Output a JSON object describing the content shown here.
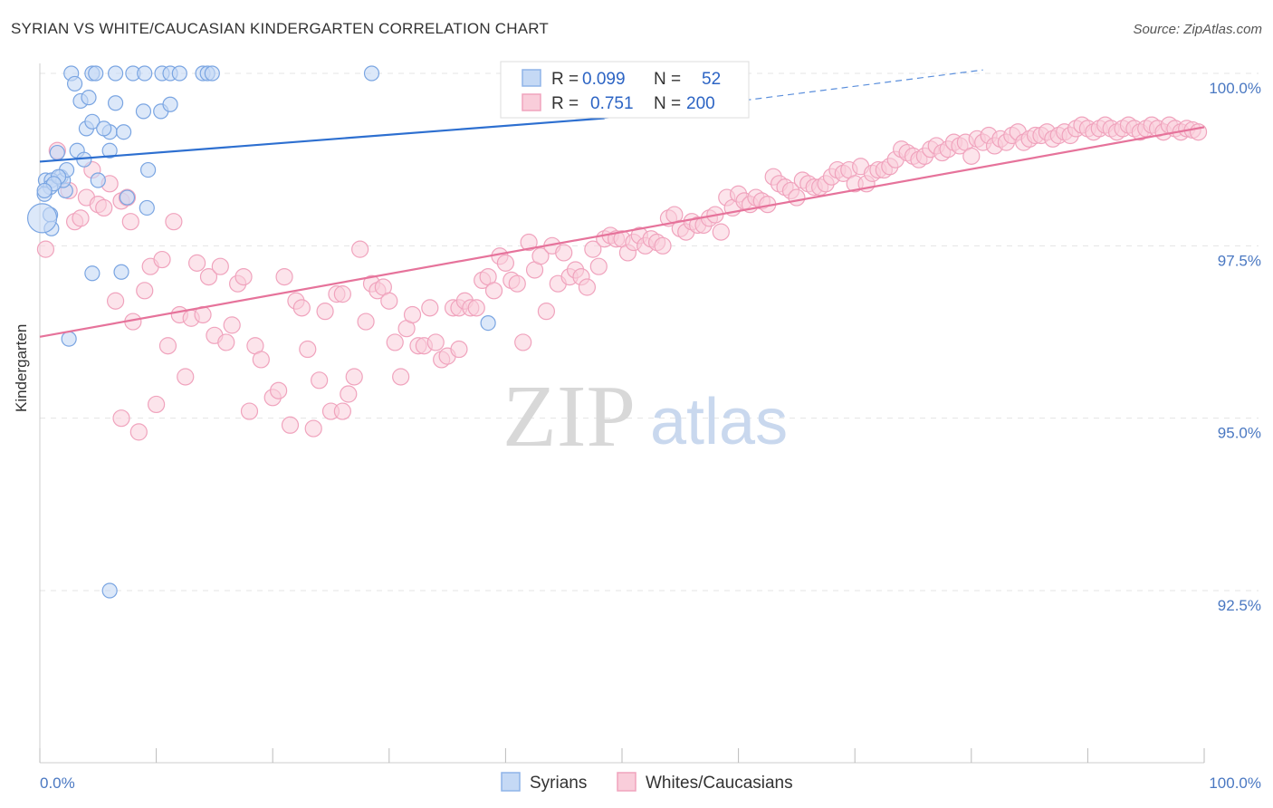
{
  "chart_data": {
    "type": "scatter",
    "title": "SYRIAN VS WHITE/CAUCASIAN KINDERGARTEN CORRELATION CHART",
    "source": "Source: ZipAtlas.com",
    "ylabel": "Kindergarten",
    "xlim": [
      0,
      100
    ],
    "ylim": [
      90.0,
      100.5
    ],
    "x_tick_labels": [
      "0.0%",
      "100.0%"
    ],
    "y_ticks": [
      92.5,
      95.0,
      97.5,
      100.0
    ],
    "y_tick_labels": [
      "92.5%",
      "95.0%",
      "97.5%",
      "100.0%"
    ],
    "watermark": {
      "zip": "ZIP",
      "atlas": "atlas"
    },
    "legend": {
      "r_label": "R =",
      "n_label": "N =",
      "entries": [
        {
          "name": "Syrians",
          "r": "0.099",
          "n": "52",
          "color": "#8fb4e8",
          "fill": "#c5d9f5",
          "line": "#2d6fd0"
        },
        {
          "name": "Whites/Caucasians",
          "r": "0.751",
          "n": "200",
          "color": "#f0a3bd",
          "fill": "#f9cdda",
          "line": "#e6739b"
        }
      ]
    },
    "series": [
      {
        "name": "Syrians",
        "trend": {
          "x0": 0,
          "y0": 98.72,
          "x1": 48.5,
          "y1": 99.35,
          "dash_to_x": 81,
          "dash_to_y": 100.05
        },
        "points": [
          [
            2.7,
            100
          ],
          [
            4.5,
            100
          ],
          [
            4.8,
            100
          ],
          [
            6.5,
            100
          ],
          [
            8.0,
            100
          ],
          [
            9.0,
            100
          ],
          [
            10.5,
            100
          ],
          [
            11.2,
            100
          ],
          [
            12.0,
            100
          ],
          [
            14.0,
            100
          ],
          [
            14.4,
            100
          ],
          [
            14.8,
            100
          ],
          [
            28.5,
            100
          ],
          [
            3.0,
            99.85
          ],
          [
            3.5,
            99.6
          ],
          [
            4.2,
            99.65
          ],
          [
            6.5,
            99.57
          ],
          [
            8.9,
            99.45
          ],
          [
            10.4,
            99.45
          ],
          [
            11.2,
            99.55
          ],
          [
            4.0,
            99.2
          ],
          [
            6.0,
            99.15
          ],
          [
            4.5,
            99.3
          ],
          [
            5.5,
            99.2
          ],
          [
            7.2,
            99.15
          ],
          [
            1.5,
            98.85
          ],
          [
            3.2,
            98.88
          ],
          [
            3.8,
            98.75
          ],
          [
            6.0,
            98.88
          ],
          [
            9.3,
            98.6
          ],
          [
            1.8,
            98.5
          ],
          [
            2.2,
            98.3
          ],
          [
            0.5,
            98.45
          ],
          [
            1.0,
            98.45
          ],
          [
            0.9,
            98.35
          ],
          [
            2.0,
            98.45
          ],
          [
            0.4,
            98.25
          ],
          [
            5.0,
            98.45
          ],
          [
            7.5,
            98.2
          ],
          [
            9.2,
            98.05
          ],
          [
            0.9,
            97.95
          ],
          [
            1.0,
            97.75
          ],
          [
            0.2,
            97.9
          ],
          [
            4.5,
            97.1
          ],
          [
            7.0,
            97.12
          ],
          [
            2.5,
            96.15
          ],
          [
            38.5,
            96.38
          ],
          [
            6.0,
            92.5
          ],
          [
            2.3,
            98.6
          ],
          [
            1.6,
            98.5
          ],
          [
            1.2,
            98.4
          ],
          [
            0.4,
            98.3
          ]
        ],
        "sizes": {
          "default": 8,
          "large": [
            [
              0.2,
              97.9,
              16
            ]
          ]
        }
      },
      {
        "name": "Whites/Caucasians",
        "trend": {
          "x0": 0,
          "y0": 96.18,
          "x1": 100,
          "y1": 99.22
        },
        "points": [
          [
            0.5,
            97.45
          ],
          [
            1.5,
            98.88
          ],
          [
            2.5,
            98.3
          ],
          [
            3.0,
            97.85
          ],
          [
            3.5,
            97.9
          ],
          [
            4.0,
            98.2
          ],
          [
            4.5,
            98.6
          ],
          [
            5.0,
            98.1
          ],
          [
            5.5,
            98.05
          ],
          [
            6.0,
            98.4
          ],
          [
            6.5,
            96.7
          ],
          [
            7.0,
            98.15
          ],
          [
            7.5,
            98.2
          ],
          [
            7.8,
            97.85
          ],
          [
            8.0,
            96.4
          ],
          [
            8.5,
            94.8
          ],
          [
            9.0,
            96.85
          ],
          [
            9.5,
            97.2
          ],
          [
            10.0,
            95.2
          ],
          [
            10.5,
            97.3
          ],
          [
            11.0,
            96.05
          ],
          [
            11.5,
            97.85
          ],
          [
            12.0,
            96.5
          ],
          [
            12.5,
            95.6
          ],
          [
            13.0,
            96.45
          ],
          [
            13.5,
            97.25
          ],
          [
            14.0,
            96.5
          ],
          [
            14.5,
            97.05
          ],
          [
            15.0,
            96.2
          ],
          [
            15.5,
            97.2
          ],
          [
            16.0,
            96.1
          ],
          [
            16.5,
            96.35
          ],
          [
            17.0,
            96.95
          ],
          [
            17.5,
            97.05
          ],
          [
            18.0,
            95.1
          ],
          [
            18.5,
            96.05
          ],
          [
            19.0,
            95.85
          ],
          [
            20.0,
            95.3
          ],
          [
            20.5,
            95.4
          ],
          [
            21.0,
            97.05
          ],
          [
            21.5,
            94.9
          ],
          [
            22.0,
            96.7
          ],
          [
            22.5,
            96.6
          ],
          [
            23.0,
            96.0
          ],
          [
            23.5,
            94.85
          ],
          [
            24.0,
            95.55
          ],
          [
            24.5,
            96.55
          ],
          [
            25.0,
            95.1
          ],
          [
            25.5,
            96.8
          ],
          [
            26.0,
            96.8
          ],
          [
            26.5,
            95.35
          ],
          [
            27.0,
            95.6
          ],
          [
            27.5,
            97.45
          ],
          [
            28.0,
            96.4
          ],
          [
            28.5,
            96.95
          ],
          [
            29.0,
            96.85
          ],
          [
            29.5,
            96.9
          ],
          [
            30.0,
            96.7
          ],
          [
            30.5,
            96.1
          ],
          [
            31.0,
            95.6
          ],
          [
            31.5,
            96.3
          ],
          [
            32.0,
            96.5
          ],
          [
            32.5,
            96.05
          ],
          [
            33.0,
            96.05
          ],
          [
            33.5,
            96.6
          ],
          [
            34.0,
            96.1
          ],
          [
            34.5,
            95.85
          ],
          [
            35.0,
            95.9
          ],
          [
            35.5,
            96.6
          ],
          [
            36.0,
            96.6
          ],
          [
            36.5,
            96.7
          ],
          [
            37.0,
            96.6
          ],
          [
            37.5,
            96.6
          ],
          [
            38.0,
            97.0
          ],
          [
            38.5,
            97.05
          ],
          [
            39.0,
            96.85
          ],
          [
            39.5,
            97.35
          ],
          [
            40.0,
            97.25
          ],
          [
            40.5,
            97.0
          ],
          [
            41.0,
            96.95
          ],
          [
            41.5,
            96.1
          ],
          [
            42.0,
            97.55
          ],
          [
            42.5,
            97.15
          ],
          [
            43.0,
            97.35
          ],
          [
            43.5,
            96.55
          ],
          [
            44.0,
            97.5
          ],
          [
            44.5,
            96.95
          ],
          [
            45.0,
            97.4
          ],
          [
            45.5,
            97.05
          ],
          [
            46.0,
            97.15
          ],
          [
            46.5,
            97.05
          ],
          [
            47.0,
            96.9
          ],
          [
            47.5,
            97.45
          ],
          [
            48.0,
            97.2
          ],
          [
            48.5,
            97.6
          ],
          [
            49.0,
            97.65
          ],
          [
            49.5,
            97.6
          ],
          [
            50.0,
            97.6
          ],
          [
            50.5,
            97.4
          ],
          [
            51.0,
            97.55
          ],
          [
            51.5,
            97.65
          ],
          [
            52.0,
            97.5
          ],
          [
            52.5,
            97.6
          ],
          [
            53.0,
            97.55
          ],
          [
            53.5,
            97.5
          ],
          [
            54.0,
            97.9
          ],
          [
            54.5,
            97.95
          ],
          [
            55.0,
            97.75
          ],
          [
            55.5,
            97.7
          ],
          [
            56.0,
            97.85
          ],
          [
            56.5,
            97.8
          ],
          [
            57.0,
            97.8
          ],
          [
            57.5,
            97.9
          ],
          [
            58.0,
            97.95
          ],
          [
            58.5,
            97.7
          ],
          [
            59.0,
            98.2
          ],
          [
            59.5,
            98.05
          ],
          [
            60.0,
            98.25
          ],
          [
            60.5,
            98.15
          ],
          [
            61.0,
            98.1
          ],
          [
            61.5,
            98.2
          ],
          [
            62.0,
            98.15
          ],
          [
            62.5,
            98.1
          ],
          [
            63.0,
            98.5
          ],
          [
            63.5,
            98.4
          ],
          [
            64.0,
            98.35
          ],
          [
            64.5,
            98.3
          ],
          [
            65.0,
            98.2
          ],
          [
            65.5,
            98.45
          ],
          [
            66.0,
            98.4
          ],
          [
            66.5,
            98.35
          ],
          [
            67.0,
            98.35
          ],
          [
            67.5,
            98.4
          ],
          [
            68.0,
            98.5
          ],
          [
            68.5,
            98.6
          ],
          [
            69.0,
            98.55
          ],
          [
            69.5,
            98.6
          ],
          [
            70.0,
            98.4
          ],
          [
            70.5,
            98.65
          ],
          [
            71.0,
            98.4
          ],
          [
            71.5,
            98.55
          ],
          [
            72.0,
            98.6
          ],
          [
            72.5,
            98.6
          ],
          [
            73.0,
            98.65
          ],
          [
            73.5,
            98.75
          ],
          [
            74.0,
            98.9
          ],
          [
            74.5,
            98.85
          ],
          [
            75.0,
            98.8
          ],
          [
            75.5,
            98.75
          ],
          [
            76.0,
            98.8
          ],
          [
            76.5,
            98.9
          ],
          [
            77.0,
            98.95
          ],
          [
            77.5,
            98.85
          ],
          [
            78.0,
            98.9
          ],
          [
            78.5,
            99.0
          ],
          [
            79.0,
            98.95
          ],
          [
            79.5,
            99.0
          ],
          [
            80.0,
            98.8
          ],
          [
            80.5,
            99.05
          ],
          [
            81.0,
            99.0
          ],
          [
            81.5,
            99.1
          ],
          [
            82.0,
            98.95
          ],
          [
            82.5,
            99.05
          ],
          [
            83.0,
            99.0
          ],
          [
            83.5,
            99.1
          ],
          [
            84.0,
            99.15
          ],
          [
            84.5,
            99.0
          ],
          [
            85.0,
            99.05
          ],
          [
            85.5,
            99.1
          ],
          [
            86.0,
            99.1
          ],
          [
            86.5,
            99.15
          ],
          [
            87.0,
            99.05
          ],
          [
            87.5,
            99.1
          ],
          [
            88.0,
            99.15
          ],
          [
            88.5,
            99.1
          ],
          [
            89.0,
            99.2
          ],
          [
            89.5,
            99.25
          ],
          [
            90.0,
            99.2
          ],
          [
            90.5,
            99.15
          ],
          [
            91.0,
            99.2
          ],
          [
            91.5,
            99.25
          ],
          [
            92.0,
            99.2
          ],
          [
            92.5,
            99.15
          ],
          [
            93.0,
            99.2
          ],
          [
            93.5,
            99.25
          ],
          [
            94.0,
            99.2
          ],
          [
            94.5,
            99.15
          ],
          [
            95.0,
            99.2
          ],
          [
            95.5,
            99.25
          ],
          [
            96.0,
            99.2
          ],
          [
            96.5,
            99.15
          ],
          [
            97.0,
            99.25
          ],
          [
            97.5,
            99.2
          ],
          [
            98.0,
            99.15
          ],
          [
            98.5,
            99.2
          ],
          [
            99.0,
            99.18
          ],
          [
            99.5,
            99.15
          ],
          [
            7.0,
            95.0
          ],
          [
            26.0,
            95.1
          ],
          [
            36.0,
            96.0
          ]
        ],
        "sizes": {
          "default": 8
        }
      }
    ]
  }
}
